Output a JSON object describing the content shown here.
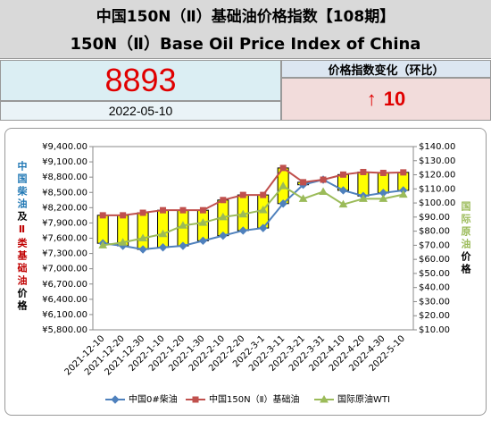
{
  "header": {
    "title_cn": "中国150N（Ⅱ）基础油价格指数【108期】",
    "title_en": "150N（Ⅱ）Base Oil Price Index of China"
  },
  "index": {
    "value": 8893,
    "date": "2022-05-10",
    "change_label": "价格指数变化（环比）",
    "change_arrow": "↑",
    "change": 10
  },
  "chart_data": {
    "type": "line",
    "categories": [
      "2021-12-10",
      "2021-12-20",
      "2021-12-30",
      "2022-1-10",
      "2022-1-20",
      "2022-1-30",
      "2022-2-10",
      "2022-2-20",
      "2022-3-1",
      "2022-3-11",
      "2022-3-21",
      "2022-3-31",
      "2022-4-10",
      "2022-4-20",
      "2022-4-30",
      "2022-5-10"
    ],
    "series": [
      {
        "name": "中国0#柴油",
        "color": "#4f81bd",
        "marker": "diamond",
        "values": [
          7500,
          7450,
          7380,
          7420,
          7450,
          7550,
          7650,
          7750,
          7800,
          8280,
          8650,
          8750,
          8540,
          8430,
          8490,
          8540
        ]
      },
      {
        "name": "中国150N（Ⅱ）基础油",
        "color": "#c0504d",
        "marker": "square",
        "values": [
          8050,
          8050,
          8100,
          8150,
          8150,
          8150,
          8350,
          8450,
          8450,
          8980,
          8700,
          8750,
          8850,
          8900,
          8883,
          8893
        ]
      },
      {
        "name": "国际原油WTI",
        "color": "#9bbb59",
        "marker": "triangle",
        "axis": "y2",
        "values": [
          70,
          72,
          75,
          78,
          84,
          86,
          90,
          92,
          95,
          112,
          103,
          108,
          99,
          103,
          103,
          106
        ]
      }
    ],
    "box_color": "#ffff00",
    "ylim": [
      5800,
      9400
    ],
    "yticks": [
      {
        "value": 5800,
        "label": "¥5,800.00"
      },
      {
        "value": 6100,
        "label": "¥6,100.00"
      },
      {
        "value": 6400,
        "label": "¥6,400.00"
      },
      {
        "value": 6700,
        "label": "¥6,700.00"
      },
      {
        "value": 7000,
        "label": "¥7,000.00"
      },
      {
        "value": 7300,
        "label": "¥7,300.00"
      },
      {
        "value": 7600,
        "label": "¥7,600.00"
      },
      {
        "value": 7900,
        "label": "¥7,900.00"
      },
      {
        "value": 8200,
        "label": "¥8,200.00"
      },
      {
        "value": 8500,
        "label": "¥8,500.00"
      },
      {
        "value": 8800,
        "label": "¥8,800.00"
      },
      {
        "value": 9100,
        "label": "¥9,100.00"
      },
      {
        "value": 9400,
        "label": "¥9,400.00"
      }
    ],
    "y2lim": [
      10,
      140
    ],
    "y2ticks": [
      {
        "value": 10,
        "label": "$10.00"
      },
      {
        "value": 20,
        "label": "$20.00"
      },
      {
        "value": 30,
        "label": "$30.00"
      },
      {
        "value": 40,
        "label": "$40.00"
      },
      {
        "value": 50,
        "label": "$50.00"
      },
      {
        "value": 60,
        "label": "$60.00"
      },
      {
        "value": 70,
        "label": "$70.00"
      },
      {
        "value": 80,
        "label": "$80.00"
      },
      {
        "value": 90,
        "label": "$90.00"
      },
      {
        "value": 100,
        "label": "$100.00"
      },
      {
        "value": 110,
        "label": "$110.00"
      },
      {
        "value": 120,
        "label": "$120.00"
      },
      {
        "value": 130,
        "label": "$130.00"
      },
      {
        "value": 140,
        "label": "$140.00"
      }
    ],
    "ylabel_parts": [
      {
        "text": "中国柴油",
        "color": "#1f77b4"
      },
      {
        "text": "及",
        "color": "#000000"
      },
      {
        "text": "Ⅱ类基础油",
        "color": "#c00000"
      },
      {
        "text": "价格",
        "color": "#000000"
      }
    ],
    "y2label_parts": [
      {
        "text": "国际原油",
        "color": "#9bbb59"
      },
      {
        "text": "价格",
        "color": "#000000"
      }
    ],
    "legend": "bottom",
    "grid": false
  }
}
